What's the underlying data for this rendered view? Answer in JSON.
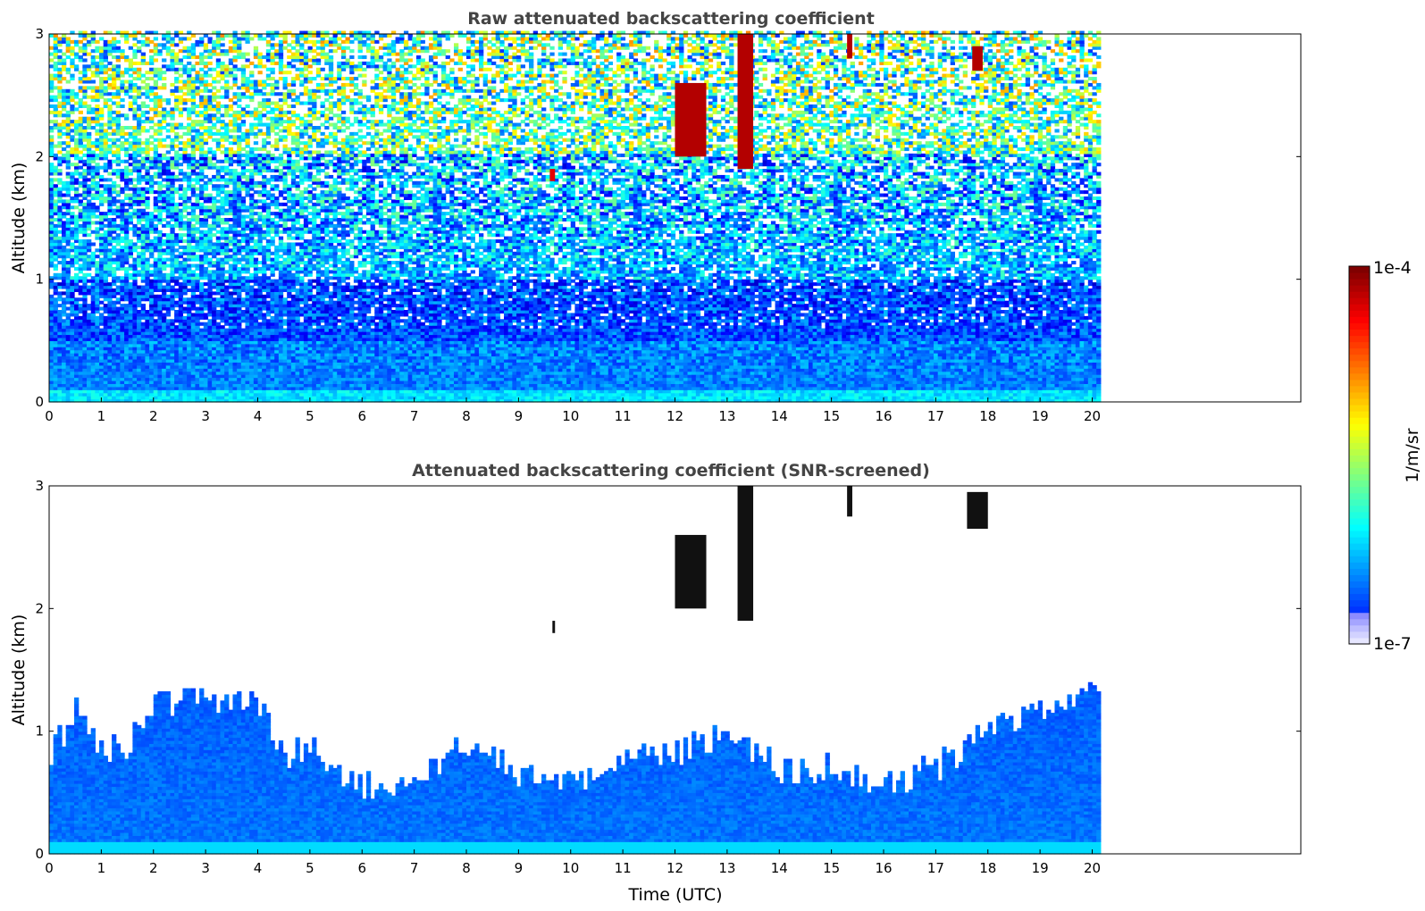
{
  "chart_data": [
    {
      "type": "heatmap",
      "title": "Raw attenuated backscattering coefficient",
      "xlabel": "",
      "ylabel": "Altitude (km)",
      "xlim": [
        0,
        24
      ],
      "ylim": [
        0,
        3
      ],
      "x_ticks": [
        "0",
        "1",
        "2",
        "3",
        "4",
        "5",
        "6",
        "7",
        "8",
        "9",
        "10",
        "11",
        "12",
        "13",
        "14",
        "15",
        "16",
        "17",
        "18",
        "19",
        "20"
      ],
      "y_ticks": [
        "0",
        "1",
        "2",
        "3"
      ],
      "data_end_time": 20.1,
      "profile_layers": [
        {
          "altitude_range": [
            0.0,
            0.1
          ],
          "level": 0.35
        },
        {
          "altitude_range": [
            0.1,
            0.5
          ],
          "level": 0.25
        },
        {
          "altitude_range": [
            0.5,
            1.0
          ],
          "level": 0.2
        },
        {
          "altitude_range": [
            1.0,
            2.0
          ],
          "level": 0.3
        },
        {
          "altitude_range": [
            2.0,
            3.0
          ],
          "level": 0.45
        }
      ],
      "features": [
        {
          "time": [
            12.0,
            12.6
          ],
          "altitude": [
            2.0,
            2.6
          ],
          "level": 1.0
        },
        {
          "time": [
            13.2,
            13.5
          ],
          "altitude": [
            1.9,
            3.0
          ],
          "level": 1.0
        },
        {
          "time": [
            15.3,
            15.4
          ],
          "altitude": [
            2.8,
            3.0
          ],
          "level": 1.0
        },
        {
          "time": [
            17.7,
            17.9
          ],
          "altitude": [
            2.7,
            2.9
          ],
          "level": 1.0
        },
        {
          "time": [
            9.6,
            9.7
          ],
          "altitude": [
            1.8,
            1.9
          ],
          "level": 0.95
        }
      ]
    },
    {
      "type": "heatmap",
      "title": "Attenuated backscattering coefficient (SNR-screened)",
      "xlabel": "Time (UTC)",
      "ylabel": "Altitude (km)",
      "xlim": [
        0,
        24
      ],
      "ylim": [
        0,
        3
      ],
      "x_ticks": [
        "0",
        "1",
        "2",
        "3",
        "4",
        "5",
        "6",
        "7",
        "8",
        "9",
        "10",
        "11",
        "12",
        "13",
        "14",
        "15",
        "16",
        "17",
        "18",
        "19",
        "20"
      ],
      "y_ticks": [
        "0",
        "1",
        "2",
        "3"
      ],
      "data_end_time": 20.1,
      "boundary_layer_top": [
        {
          "time": 0.0,
          "altitude": 0.8
        },
        {
          "time": 0.5,
          "altitude": 1.2
        },
        {
          "time": 1.0,
          "altitude": 0.8
        },
        {
          "time": 1.5,
          "altitude": 0.9
        },
        {
          "time": 2.0,
          "altitude": 1.2
        },
        {
          "time": 3.0,
          "altitude": 1.25
        },
        {
          "time": 4.0,
          "altitude": 1.2
        },
        {
          "time": 4.5,
          "altitude": 0.8
        },
        {
          "time": 5.0,
          "altitude": 0.85
        },
        {
          "time": 5.5,
          "altitude": 0.6
        },
        {
          "time": 6.0,
          "altitude": 0.55
        },
        {
          "time": 7.0,
          "altitude": 0.6
        },
        {
          "time": 8.0,
          "altitude": 0.9
        },
        {
          "time": 9.0,
          "altitude": 0.65
        },
        {
          "time": 10.0,
          "altitude": 0.6
        },
        {
          "time": 11.0,
          "altitude": 0.75
        },
        {
          "time": 12.0,
          "altitude": 0.8
        },
        {
          "time": 13.0,
          "altitude": 1.0
        },
        {
          "time": 14.0,
          "altitude": 0.65
        },
        {
          "time": 15.0,
          "altitude": 0.7
        },
        {
          "time": 16.0,
          "altitude": 0.55
        },
        {
          "time": 17.0,
          "altitude": 0.7
        },
        {
          "time": 18.0,
          "altitude": 1.0
        },
        {
          "time": 19.0,
          "altitude": 1.2
        },
        {
          "time": 20.1,
          "altitude": 1.3
        }
      ],
      "features": [
        {
          "time": [
            12.0,
            12.6
          ],
          "altitude": [
            2.0,
            2.6
          ],
          "level": 1.0
        },
        {
          "time": [
            13.2,
            13.5
          ],
          "altitude": [
            1.9,
            3.0
          ],
          "level": 1.0
        },
        {
          "time": [
            15.3,
            15.4
          ],
          "altitude": [
            2.75,
            3.0
          ],
          "level": 1.0
        },
        {
          "time": [
            17.6,
            18.0
          ],
          "altitude": [
            2.65,
            2.95
          ],
          "level": 1.0
        },
        {
          "time": [
            9.65,
            9.7
          ],
          "altitude": [
            1.8,
            1.9
          ],
          "level": 1.0
        }
      ]
    }
  ],
  "colorbar": {
    "label": "1/m/sr",
    "max_label": "1e-4",
    "min_label": "1e-7",
    "colormap": "jet"
  }
}
